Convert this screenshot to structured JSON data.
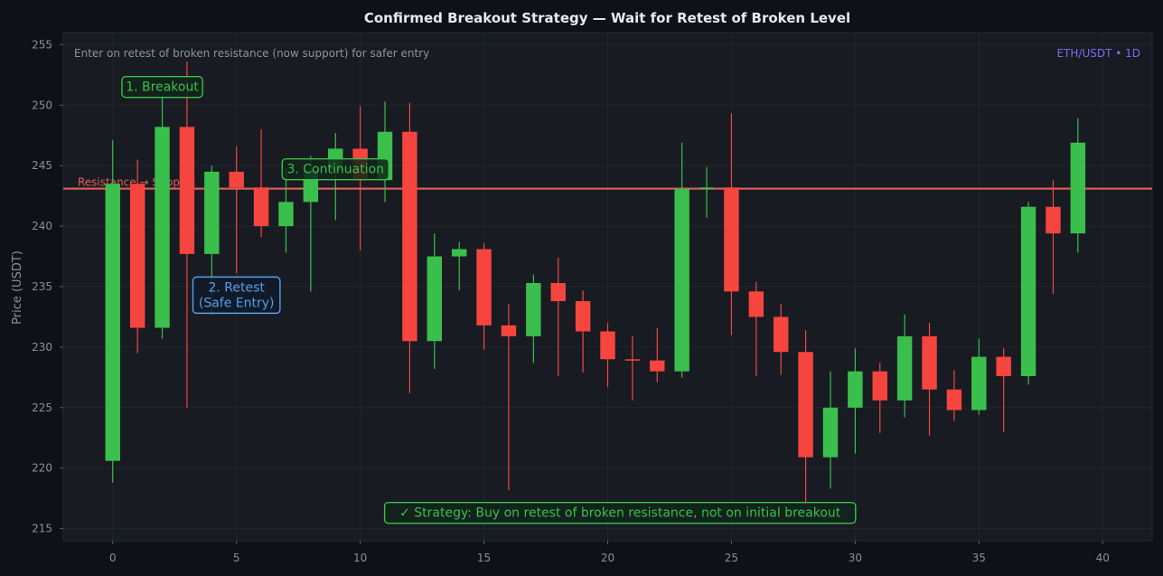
{
  "chart_data": {
    "type": "candlestick",
    "title": "Confirmed Breakout Strategy — Wait for Retest of Broken Level",
    "subtitle": "Enter on retest of broken resistance (now support) for safer entry",
    "pair_label": "ETH/USDT • 1D",
    "ylabel": "Price (USDT)",
    "xlabel": "",
    "xlim": [
      -2,
      42
    ],
    "ylim": [
      214,
      256
    ],
    "x_ticks": [
      0,
      5,
      10,
      15,
      20,
      25,
      30,
      35,
      40
    ],
    "y_ticks": [
      215,
      220,
      225,
      230,
      235,
      240,
      245,
      250,
      255
    ],
    "grid": true,
    "colors": {
      "up": "#3bbf4c",
      "down": "#f6453f",
      "level": "#e0605c",
      "background": "#181b22",
      "page": "#0e1118",
      "grid": "#22262f",
      "retest": "#5b9ee8"
    },
    "candles": [
      {
        "x": 0,
        "open": 220.6,
        "high": 247.1,
        "low": 218.8,
        "close": 243.5
      },
      {
        "x": 1,
        "open": 243.5,
        "high": 245.5,
        "low": 229.5,
        "close": 231.6
      },
      {
        "x": 2,
        "open": 231.6,
        "high": 250.8,
        "low": 230.7,
        "close": 248.2
      },
      {
        "x": 3,
        "open": 248.2,
        "high": 253.6,
        "low": 225.0,
        "close": 237.7
      },
      {
        "x": 4,
        "open": 237.7,
        "high": 245.0,
        "low": 232.7,
        "close": 244.5
      },
      {
        "x": 5,
        "open": 244.5,
        "high": 246.6,
        "low": 236.1,
        "close": 243.2
      },
      {
        "x": 6,
        "open": 243.2,
        "high": 248.0,
        "low": 239.1,
        "close": 240.0
      },
      {
        "x": 7,
        "open": 240.0,
        "high": 244.8,
        "low": 237.8,
        "close": 242.0
      },
      {
        "x": 8,
        "open": 242.0,
        "high": 245.8,
        "low": 234.6,
        "close": 244.6
      },
      {
        "x": 9,
        "open": 244.6,
        "high": 247.7,
        "low": 240.5,
        "close": 246.4
      },
      {
        "x": 10,
        "open": 246.4,
        "high": 249.9,
        "low": 238.0,
        "close": 243.8
      },
      {
        "x": 11,
        "open": 243.8,
        "high": 250.3,
        "low": 242.0,
        "close": 247.8
      },
      {
        "x": 12,
        "open": 247.8,
        "high": 250.2,
        "low": 226.2,
        "close": 230.5
      },
      {
        "x": 13,
        "open": 230.5,
        "high": 239.4,
        "low": 228.2,
        "close": 237.5
      },
      {
        "x": 14,
        "open": 237.5,
        "high": 238.7,
        "low": 234.7,
        "close": 238.1
      },
      {
        "x": 15,
        "open": 238.1,
        "high": 238.6,
        "low": 229.8,
        "close": 231.8
      },
      {
        "x": 16,
        "open": 231.8,
        "high": 233.6,
        "low": 218.2,
        "close": 230.9
      },
      {
        "x": 17,
        "open": 230.9,
        "high": 236.0,
        "low": 228.7,
        "close": 235.3
      },
      {
        "x": 18,
        "open": 235.3,
        "high": 237.4,
        "low": 227.6,
        "close": 233.8
      },
      {
        "x": 19,
        "open": 233.8,
        "high": 234.7,
        "low": 227.9,
        "close": 231.3
      },
      {
        "x": 20,
        "open": 231.3,
        "high": 232.0,
        "low": 226.7,
        "close": 229.0
      },
      {
        "x": 21,
        "open": 229.0,
        "high": 230.9,
        "low": 225.6,
        "close": 228.9
      },
      {
        "x": 22,
        "open": 228.9,
        "high": 231.6,
        "low": 227.1,
        "close": 228.0
      },
      {
        "x": 23,
        "open": 228.0,
        "high": 246.9,
        "low": 227.5,
        "close": 243.1
      },
      {
        "x": 24,
        "open": 243.1,
        "high": 244.9,
        "low": 240.7,
        "close": 243.2
      },
      {
        "x": 25,
        "open": 243.2,
        "high": 249.3,
        "low": 231.0,
        "close": 234.6
      },
      {
        "x": 26,
        "open": 234.6,
        "high": 235.4,
        "low": 227.6,
        "close": 232.5
      },
      {
        "x": 27,
        "open": 232.5,
        "high": 233.6,
        "low": 227.7,
        "close": 229.6
      },
      {
        "x": 28,
        "open": 229.6,
        "high": 231.4,
        "low": 217.0,
        "close": 220.9
      },
      {
        "x": 29,
        "open": 220.9,
        "high": 228.0,
        "low": 218.3,
        "close": 225.0
      },
      {
        "x": 30,
        "open": 225.0,
        "high": 229.9,
        "low": 221.2,
        "close": 228.0
      },
      {
        "x": 31,
        "open": 228.0,
        "high": 228.7,
        "low": 222.9,
        "close": 225.6
      },
      {
        "x": 32,
        "open": 225.6,
        "high": 232.7,
        "low": 224.2,
        "close": 230.9
      },
      {
        "x": 33,
        "open": 230.9,
        "high": 232.0,
        "low": 222.7,
        "close": 226.5
      },
      {
        "x": 34,
        "open": 226.5,
        "high": 228.1,
        "low": 223.9,
        "close": 224.8
      },
      {
        "x": 35,
        "open": 224.8,
        "high": 230.7,
        "low": 224.4,
        "close": 229.2
      },
      {
        "x": 36,
        "open": 229.2,
        "high": 229.9,
        "low": 223.0,
        "close": 227.6
      },
      {
        "x": 37,
        "open": 227.6,
        "high": 242.0,
        "low": 226.9,
        "close": 241.6
      },
      {
        "x": 38,
        "open": 241.6,
        "high": 243.8,
        "low": 234.4,
        "close": 239.4
      },
      {
        "x": 39,
        "open": 239.4,
        "high": 248.9,
        "low": 237.8,
        "close": 246.9
      }
    ],
    "level": {
      "value": 243.1,
      "label": "Resistance → Support"
    },
    "annotations": [
      {
        "id": "breakout",
        "text": [
          "1. Breakout"
        ],
        "x": 2,
        "y": 251.5,
        "color": "#3bbf4c"
      },
      {
        "id": "retest",
        "text": [
          "2. Retest",
          "(Safe Entry)"
        ],
        "x": 5,
        "y": 234.3,
        "color": "#5b9ee8"
      },
      {
        "id": "continuation",
        "text": [
          "3. Continuation"
        ],
        "x": 9,
        "y": 244.7,
        "color": "#3bbf4c"
      },
      {
        "id": "strategy",
        "text": [
          "✓ Strategy: Buy on retest of broken resistance, not on initial breakout"
        ],
        "x": 20.5,
        "y": 216.3,
        "color": "#3bbf4c"
      }
    ]
  }
}
